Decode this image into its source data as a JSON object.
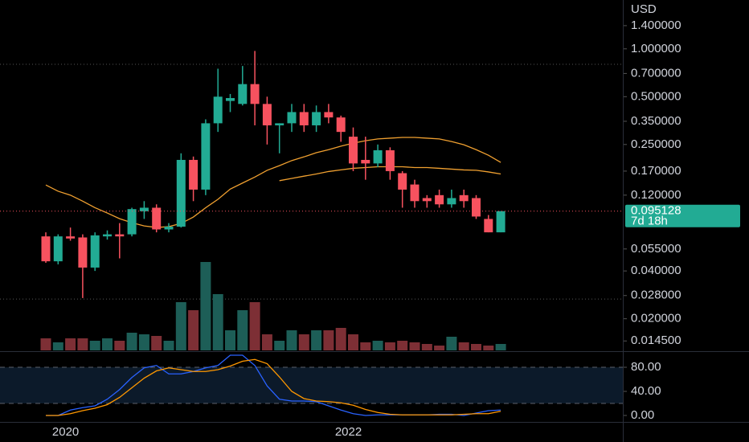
{
  "chart_data": [
    {
      "type": "candlestick",
      "currency": "USD",
      "categories": [
        null,
        null,
        "2020",
        null,
        null,
        null,
        null,
        null,
        null,
        null,
        null,
        null,
        null,
        null,
        null,
        null,
        null,
        null,
        null,
        null,
        null,
        null,
        null,
        null,
        null,
        "2022",
        null,
        null,
        null,
        null,
        null,
        null,
        null,
        null,
        null,
        null,
        null,
        null
      ],
      "open": [
        0.066,
        0.046,
        0.066,
        0.065,
        0.042,
        0.066,
        0.068,
        0.068,
        0.095,
        0.1,
        0.073,
        0.076,
        0.2,
        0.13,
        0.34,
        0.47,
        0.45,
        0.6,
        0.45,
        0.33,
        0.34,
        0.4,
        0.33,
        0.4,
        0.37,
        0.28,
        0.2,
        0.19,
        0.23,
        0.165,
        0.14,
        0.115,
        0.12,
        0.105,
        0.12,
        0.115,
        0.085,
        0.07
      ],
      "high": [
        0.07,
        0.068,
        0.075,
        0.068,
        0.07,
        0.072,
        0.08,
        0.1,
        0.11,
        0.105,
        0.08,
        0.22,
        0.21,
        0.36,
        0.75,
        0.52,
        0.78,
        0.97,
        0.5,
        0.34,
        0.45,
        0.45,
        0.44,
        0.45,
        0.38,
        0.32,
        0.28,
        0.25,
        0.24,
        0.17,
        0.15,
        0.12,
        0.13,
        0.13,
        0.13,
        0.12,
        0.09,
        0.095128
      ],
      "low": [
        0.045,
        0.044,
        0.062,
        0.027,
        0.04,
        0.063,
        0.048,
        0.066,
        0.085,
        0.07,
        0.07,
        0.075,
        0.11,
        0.12,
        0.3,
        0.4,
        0.44,
        0.33,
        0.25,
        0.22,
        0.3,
        0.3,
        0.3,
        0.34,
        0.26,
        0.17,
        0.15,
        0.18,
        0.15,
        0.1,
        0.1,
        0.1,
        0.1,
        0.1,
        0.1,
        0.085,
        0.07,
        0.07
      ],
      "close": [
        0.046,
        0.066,
        0.064,
        0.042,
        0.067,
        0.068,
        0.066,
        0.098,
        0.1,
        0.073,
        0.076,
        0.2,
        0.13,
        0.34,
        0.5,
        0.49,
        0.6,
        0.45,
        0.33,
        0.34,
        0.4,
        0.33,
        0.4,
        0.37,
        0.3,
        0.19,
        0.19,
        0.23,
        0.17,
        0.13,
        0.11,
        0.11,
        0.105,
        0.115,
        0.11,
        0.088,
        0.07,
        0.095128
      ],
      "up_color": "#22ab94",
      "down_color": "#f7525f",
      "volume": {
        "values": [
          15,
          10,
          15,
          15,
          12,
          15,
          12,
          22,
          20,
          18,
          12,
          60,
          50,
          110,
          70,
          25,
          50,
          60,
          20,
          12,
          25,
          20,
          25,
          25,
          28,
          20,
          10,
          12,
          10,
          12,
          10,
          8,
          6,
          17,
          10,
          8,
          6,
          8
        ],
        "up_color": "#1d5e57",
        "down_color": "#7d2f35"
      },
      "series": [
        {
          "color": "#f0a030",
          "values": [
            0.139,
            0.127,
            0.12,
            0.11,
            0.1,
            0.0926,
            0.0853,
            0.0805,
            0.0768,
            0.0751,
            0.076,
            0.0796,
            0.0874,
            0.1,
            0.113,
            0.131,
            0.143,
            0.156,
            0.172,
            0.184,
            0.198,
            0.209,
            0.222,
            0.232,
            0.244,
            0.255,
            0.264,
            0.271,
            0.274,
            0.277,
            0.277,
            0.274,
            0.271,
            0.261,
            0.249,
            0.232,
            0.214,
            0.193
          ]
        },
        {
          "color": "#f0a030",
          "values": [
            null,
            null,
            null,
            null,
            null,
            null,
            null,
            null,
            null,
            null,
            null,
            null,
            null,
            null,
            null,
            null,
            null,
            null,
            null,
            0.148,
            0.153,
            0.158,
            0.163,
            0.169,
            0.173,
            0.177,
            0.179,
            0.181,
            0.181,
            0.181,
            0.179,
            0.179,
            0.177,
            0.175,
            0.173,
            0.172,
            0.168,
            0.163
          ]
        }
      ],
      "levels": [
        0.8,
        0.0266
      ],
      "last_price": 0.095128,
      "countdown": "7d 18h",
      "log_scale": true,
      "ylim": [
        0.0125,
        2.03
      ],
      "yticks": [
        {
          "value": 1.4,
          "label": "1.400000"
        },
        {
          "value": 1.0,
          "label": "1.000000"
        },
        {
          "value": 0.7,
          "label": "0.700000"
        },
        {
          "value": 0.5,
          "label": "0.500000"
        },
        {
          "value": 0.35,
          "label": "0.350000"
        },
        {
          "value": 0.25,
          "label": "0.250000"
        },
        {
          "value": 0.17,
          "label": "0.170000"
        },
        {
          "value": 0.12,
          "label": "0.120000"
        },
        {
          "value": 0.055,
          "label": "0.055000"
        },
        {
          "value": 0.04,
          "label": "0.040000"
        },
        {
          "value": 0.028,
          "label": "0.028000"
        },
        {
          "value": 0.02,
          "label": "0.020000"
        },
        {
          "value": 0.0145,
          "label": "0.014500"
        }
      ]
    },
    {
      "type": "line",
      "series": [
        {
          "color": "#2962ff",
          "values": [
            0,
            0,
            9,
            13,
            16,
            27,
            43,
            63,
            79,
            83,
            69,
            69,
            73,
            79,
            83,
            100,
            100,
            83,
            49,
            27,
            24,
            24,
            23,
            16,
            9,
            3,
            0,
            1,
            1,
            1,
            1,
            1,
            2,
            2,
            0,
            4,
            8,
            9
          ]
        },
        {
          "color": "#ff9800",
          "values": [
            0,
            0,
            3,
            8,
            12,
            18,
            30,
            46,
            62,
            74,
            79,
            76,
            73,
            73,
            76,
            82,
            90,
            93,
            86,
            64,
            40,
            28,
            24,
            23,
            21,
            17,
            10,
            5,
            2,
            1,
            1,
            1,
            1,
            1,
            2,
            3,
            3,
            7
          ]
        }
      ],
      "bands": [
        20,
        80
      ],
      "ylim": [
        -10.7,
        102.7
      ],
      "yticks": [
        {
          "value": 80,
          "label": "80.00"
        },
        {
          "value": 40,
          "label": "40.00"
        },
        {
          "value": 0,
          "label": "0.00"
        }
      ]
    }
  ]
}
